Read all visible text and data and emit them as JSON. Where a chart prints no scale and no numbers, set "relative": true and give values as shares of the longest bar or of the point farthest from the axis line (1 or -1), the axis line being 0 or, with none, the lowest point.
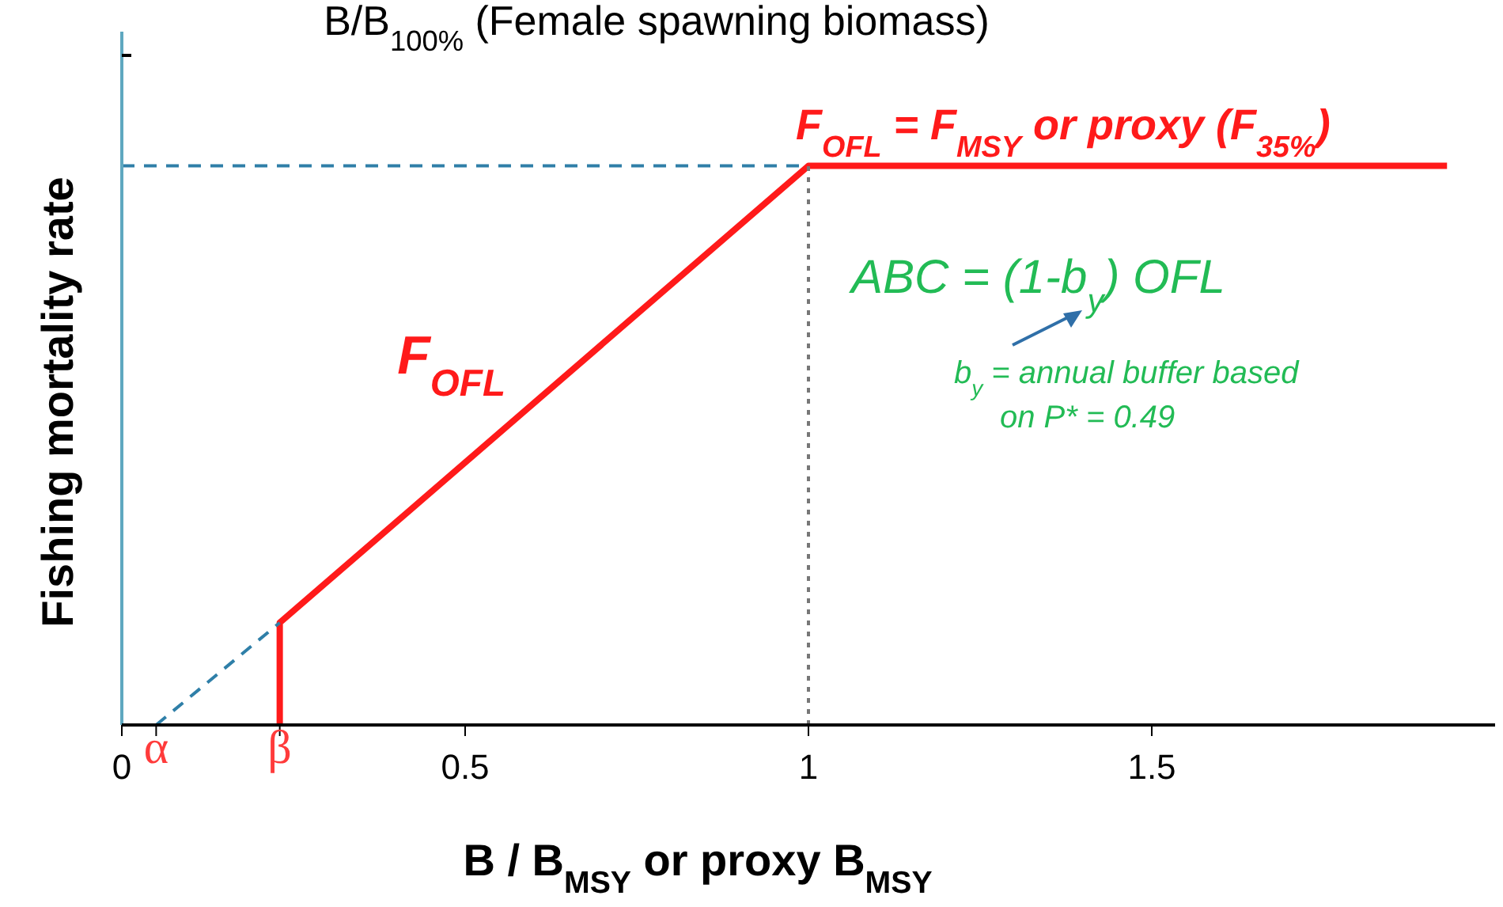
{
  "chart_data": {
    "type": "line",
    "relative": true,
    "title": "B/B$_{100%}$ (Female spawning biomass)",
    "xlabel": "B / B$_{MSY}$ or proxy B$_{MSY}$",
    "ylabel": "Fishing mortality rate",
    "xlim": [
      0,
      2
    ],
    "xticks": [
      0,
      {
        "value": 0.05,
        "label": "α"
      },
      {
        "value": 0.23,
        "label": "β"
      },
      0.5,
      1,
      1.5
    ],
    "series": [
      {
        "name": "F$_{OFL}$",
        "color": "#ff1a1a",
        "x": [
          0.23,
          0.23,
          1,
          1.93
        ],
        "values": [
          0,
          0.183,
          1,
          1
        ],
        "line_style": "solid"
      },
      {
        "color": "#2f7fa8",
        "x": [
          0.05,
          0.23
        ],
        "values": [
          0,
          0.183
        ],
        "line_style": "dashed"
      },
      {
        "color": "#2f7fa8",
        "x": [
          0,
          1
        ],
        "values": [
          1,
          1
        ],
        "line_style": "dashed"
      },
      {
        "color": "#777777",
        "x": [
          1,
          1
        ],
        "values": [
          0,
          1
        ],
        "line_style": "dotted"
      }
    ],
    "annotations": [
      "F$_{OFL}$ = F$_{MSY}$ or proxy (F$_{35%}$)",
      "ABC = (1-b$_{y}$) OFL",
      "b$_{y}$ = annual buffer based",
      "on P* = 0.49"
    ]
  }
}
